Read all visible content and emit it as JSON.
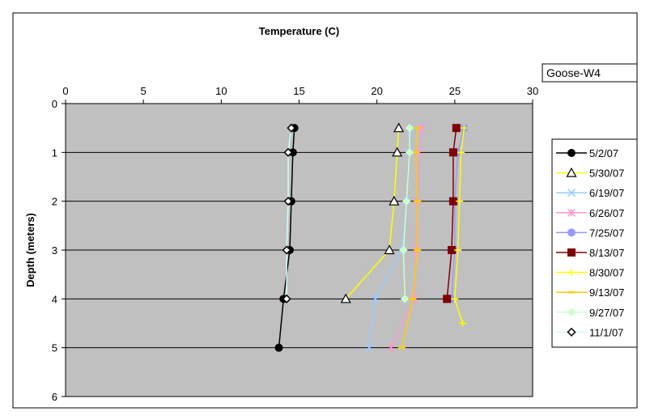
{
  "chart_data": {
    "type": "scatter",
    "title": "",
    "xlabel": "Temperature (C)",
    "ylabel": "Depth (meters)",
    "xlim": [
      0,
      30
    ],
    "ylim": [
      0,
      6
    ],
    "x_ticks": [
      "0",
      "5",
      "10",
      "15",
      "20",
      "25",
      "30"
    ],
    "y_ticks": [
      "0",
      "1",
      "2",
      "3",
      "4",
      "5",
      "6"
    ],
    "x_axis_position": "top",
    "y_inverted": true,
    "grid": "horizontal",
    "plot_background": "#C0C0C0",
    "legend_position": "right",
    "site_label": "Goose-W4",
    "series": [
      {
        "name": "5/2/07",
        "color": "#000000",
        "marker": "circle-filled",
        "points": [
          [
            14.7,
            0.5
          ],
          [
            14.6,
            1
          ],
          [
            14.5,
            2
          ],
          [
            14.4,
            3
          ],
          [
            14.0,
            4
          ],
          [
            13.7,
            5
          ]
        ]
      },
      {
        "name": "5/30/07",
        "color": "#FFFF00",
        "marker": "triangle-open",
        "points": [
          [
            21.4,
            0.5
          ],
          [
            21.3,
            1
          ],
          [
            21.1,
            2
          ],
          [
            20.8,
            3
          ],
          [
            18.0,
            4
          ]
        ]
      },
      {
        "name": "6/19/07",
        "color": "#99CCFF",
        "marker": "x",
        "points": [
          [
            22.2,
            0.5
          ],
          [
            22.1,
            1
          ],
          [
            21.9,
            2
          ],
          [
            21.6,
            3
          ],
          [
            19.9,
            4
          ],
          [
            19.5,
            5
          ]
        ]
      },
      {
        "name": "6/26/07",
        "color": "#FF99CC",
        "marker": "asterisk",
        "points": [
          [
            22.9,
            0.5
          ],
          [
            22.7,
            1
          ],
          [
            22.6,
            2
          ],
          [
            22.5,
            3
          ],
          [
            22.4,
            4
          ],
          [
            20.9,
            5
          ]
        ]
      },
      {
        "name": "7/25/07",
        "color": "#9999FF",
        "marker": "circle-filled",
        "points": [
          [
            25.6,
            0.5
          ],
          [
            25.2,
            1
          ],
          [
            25.0,
            2
          ],
          [
            25.0,
            3
          ],
          [
            24.8,
            4
          ]
        ]
      },
      {
        "name": "8/13/07",
        "color": "#800000",
        "marker": "square-filled",
        "points": [
          [
            25.1,
            0.5
          ],
          [
            24.9,
            1
          ],
          [
            24.9,
            2
          ],
          [
            24.8,
            3
          ],
          [
            24.5,
            4
          ]
        ]
      },
      {
        "name": "8/30/07",
        "color": "#FFFF00",
        "marker": "plus",
        "points": [
          [
            25.6,
            0.5
          ],
          [
            25.4,
            1
          ],
          [
            25.3,
            2
          ],
          [
            25.2,
            3
          ],
          [
            25.0,
            4
          ],
          [
            25.5,
            4.5
          ]
        ]
      },
      {
        "name": "9/13/07",
        "color": "#FFCC00",
        "marker": "dash",
        "points": [
          [
            22.6,
            0.5
          ],
          [
            22.5,
            1
          ],
          [
            22.6,
            2
          ],
          [
            22.6,
            3
          ],
          [
            22.3,
            4
          ],
          [
            21.6,
            5
          ]
        ]
      },
      {
        "name": "9/27/07",
        "color": "#CCFFCC",
        "marker": "diamond-filled",
        "points": [
          [
            22.1,
            0.5
          ],
          [
            22.1,
            1
          ],
          [
            21.9,
            2
          ],
          [
            21.7,
            3
          ],
          [
            21.8,
            4
          ]
        ]
      },
      {
        "name": "11/1/07",
        "color": "#000000",
        "marker": "diamond-open",
        "line_color": "#CCFFFF",
        "points": [
          [
            14.5,
            0.5
          ],
          [
            14.3,
            1
          ],
          [
            14.3,
            2
          ],
          [
            14.2,
            3
          ],
          [
            14.2,
            4
          ]
        ]
      }
    ]
  }
}
